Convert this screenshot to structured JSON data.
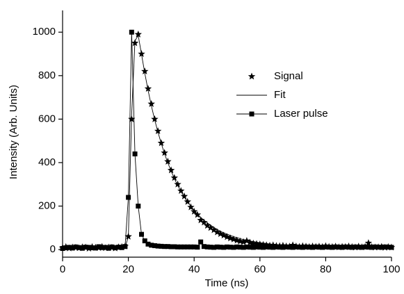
{
  "chart_data": {
    "type": "scatter",
    "xlabel": "Time (ns)",
    "ylabel": "Intensity (Arb. Units)",
    "xlim": [
      0,
      100
    ],
    "ylim": [
      -35,
      1100
    ],
    "xticks": [
      0,
      20,
      40,
      60,
      80,
      100
    ],
    "yticks": [
      0,
      200,
      400,
      600,
      800,
      1000
    ],
    "legend": "upper right",
    "x": [
      0,
      1,
      2,
      3,
      4,
      5,
      6,
      7,
      8,
      9,
      10,
      11,
      12,
      13,
      14,
      15,
      16,
      17,
      18,
      19,
      20,
      21,
      22,
      23,
      24,
      25,
      26,
      27,
      28,
      29,
      30,
      31,
      32,
      33,
      34,
      35,
      36,
      37,
      38,
      39,
      40,
      41,
      42,
      43,
      44,
      45,
      46,
      47,
      48,
      49,
      50,
      51,
      52,
      53,
      54,
      55,
      56,
      57,
      58,
      59,
      60,
      61,
      62,
      63,
      64,
      65,
      66,
      67,
      68,
      69,
      70,
      71,
      72,
      73,
      74,
      75,
      76,
      77,
      78,
      79,
      80,
      81,
      82,
      83,
      84,
      85,
      86,
      87,
      88,
      89,
      90,
      91,
      92,
      93,
      94,
      95,
      96,
      97,
      98,
      99,
      100
    ],
    "series": [
      {
        "name": "Signal",
        "color": "#000000",
        "marker": "star",
        "line": false,
        "values": [
          8,
          12,
          6,
          10,
          9,
          7,
          11,
          10,
          5,
          12,
          9,
          8,
          13,
          7,
          10,
          9,
          6,
          11,
          12,
          15,
          60,
          600,
          950,
          990,
          900,
          820,
          740,
          670,
          600,
          545,
          490,
          445,
          405,
          365,
          330,
          300,
          270,
          245,
          220,
          195,
          175,
          160,
          135,
          125,
          110,
          100,
          90,
          80,
          72,
          65,
          58,
          52,
          47,
          42,
          38,
          35,
          40,
          32,
          28,
          26,
          24,
          22,
          20,
          18,
          20,
          17,
          16,
          18,
          15,
          14,
          20,
          15,
          13,
          16,
          14,
          12,
          15,
          13,
          14,
          12,
          16,
          13,
          12,
          14,
          11,
          13,
          12,
          15,
          12,
          10,
          14,
          11,
          13,
          30,
          12,
          10,
          11,
          13,
          9,
          12,
          10
        ]
      },
      {
        "name": "Fit",
        "color": "#000000",
        "marker": "none",
        "line": true,
        "values": [
          10,
          10,
          10,
          10,
          10,
          10,
          10,
          10,
          10,
          10,
          10,
          10,
          10,
          10,
          10,
          10,
          10,
          10,
          10,
          10,
          60,
          620,
          960,
          985,
          898,
          811,
          732,
          661,
          597,
          540,
          488,
          441,
          399,
          361,
          326,
          295,
          267,
          242,
          219,
          199,
          180,
          163,
          148,
          135,
          123,
          112,
          102,
          93,
          84,
          77,
          71,
          65,
          59,
          55,
          50,
          46,
          43,
          39,
          37,
          34,
          32,
          30,
          28,
          26,
          24,
          23,
          22,
          21,
          20,
          19,
          18,
          17,
          17,
          16,
          16,
          15,
          15,
          14,
          14,
          14,
          13,
          13,
          13,
          12,
          12,
          12,
          12,
          12,
          11,
          11,
          11,
          11,
          11,
          11,
          11,
          11,
          10,
          10,
          10,
          10,
          10
        ]
      },
      {
        "name": "Laser pulse",
        "color": "#000000",
        "marker": "square",
        "line": true,
        "values": [
          5,
          8,
          10,
          7,
          12,
          9,
          6,
          11,
          10,
          8,
          7,
          13,
          9,
          10,
          6,
          12,
          8,
          11,
          9,
          14,
          240,
          1000,
          440,
          200,
          70,
          40,
          25,
          20,
          18,
          16,
          15,
          14,
          14,
          13,
          13,
          12,
          12,
          12,
          12,
          12,
          12,
          11,
          35,
          14,
          12,
          11,
          10,
          12,
          11,
          10,
          12,
          11,
          10,
          12,
          11,
          10,
          12,
          11,
          10,
          12,
          11,
          10,
          12,
          11,
          10,
          12,
          11,
          10,
          12,
          11,
          10,
          12,
          11,
          10,
          12,
          11,
          10,
          12,
          11,
          10,
          12,
          11,
          10,
          12,
          11,
          10,
          12,
          11,
          10,
          12,
          11,
          10,
          12,
          11,
          10,
          12,
          11,
          10,
          12,
          11,
          10
        ]
      }
    ]
  }
}
